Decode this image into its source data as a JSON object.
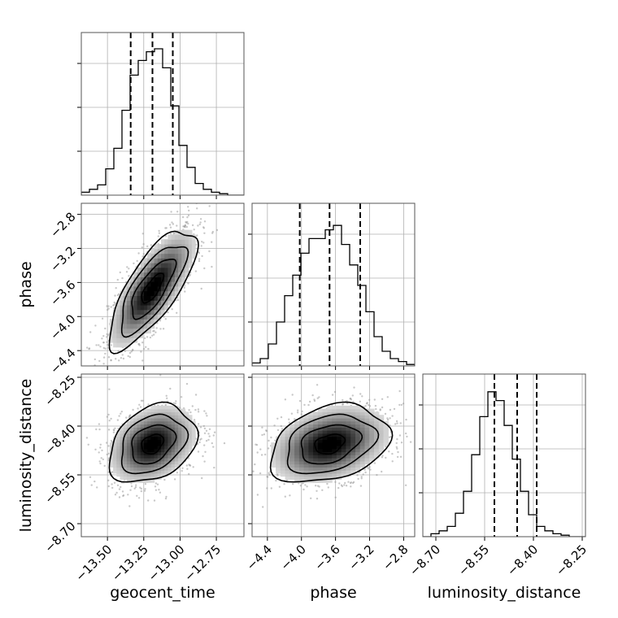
{
  "chart_data": {
    "type": "corner",
    "grid": true,
    "parameters": [
      {
        "name": "geocent_time",
        "label": "geocent_time",
        "range": [
          -13.68,
          -12.56
        ],
        "ticks": [
          -13.5,
          -13.25,
          -13.0,
          -12.75
        ],
        "tick_labels": [
          "−13.50",
          "−13.25",
          "−13.00",
          "−12.75"
        ],
        "quantiles": [
          -13.34,
          -13.19,
          -13.05
        ],
        "mean": -13.19,
        "sd": 0.15
      },
      {
        "name": "phase",
        "label": "phase",
        "range": [
          -4.58,
          -2.67
        ],
        "ticks": [
          -4.4,
          -4.0,
          -3.6,
          -3.2,
          -2.8
        ],
        "tick_labels": [
          "−4.4",
          "−4.0",
          "−3.6",
          "−3.2",
          "−2.8"
        ],
        "quantiles": [
          -4.02,
          -3.67,
          -3.31
        ],
        "mean": -3.67,
        "sd": 0.35
      },
      {
        "name": "luminosity_distance",
        "label": "luminosity_distance",
        "range": [
          -8.74,
          -8.24
        ],
        "ticks": [
          -8.7,
          -8.55,
          -8.4,
          -8.25
        ],
        "tick_labels": [
          "−8.70",
          "−8.55",
          "−8.40",
          "−8.25"
        ],
        "quantiles": [
          -8.52,
          -8.45,
          -8.39
        ],
        "mean": -8.455,
        "sd": 0.06
      }
    ],
    "histograms": [
      {
        "param": "geocent_time",
        "bin_edges_start": -13.68,
        "bin_width": 0.056,
        "counts": [
          0.02,
          0.04,
          0.07,
          0.18,
          0.32,
          0.58,
          0.82,
          0.92,
          0.98,
          1.0,
          0.87,
          0.61,
          0.34,
          0.19,
          0.08,
          0.04,
          0.02,
          0.01,
          0,
          0
        ]
      },
      {
        "param": "phase",
        "bin_edges_start": -4.58,
        "bin_width": 0.0955,
        "counts": [
          0.02,
          0.05,
          0.15,
          0.3,
          0.48,
          0.62,
          0.77,
          0.87,
          0.87,
          0.93,
          0.96,
          0.83,
          0.69,
          0.55,
          0.37,
          0.2,
          0.1,
          0.05,
          0.03,
          0.01
        ]
      },
      {
        "param": "luminosity_distance",
        "bin_edges_start": -8.74,
        "bin_width": 0.025,
        "counts": [
          0.0,
          0.02,
          0.04,
          0.07,
          0.16,
          0.31,
          0.56,
          0.82,
          0.99,
          0.93,
          0.76,
          0.53,
          0.31,
          0.15,
          0.07,
          0.04,
          0.02,
          0.01,
          0,
          0
        ]
      }
    ],
    "correlations": [
      {
        "x": "geocent_time",
        "y": "phase",
        "rho": 0.75
      },
      {
        "x": "geocent_time",
        "y": "luminosity_distance",
        "rho": 0.3
      },
      {
        "x": "phase",
        "y": "luminosity_distance",
        "rho": 0.3
      }
    ],
    "contour_levels_sigma": [
      0.5,
      1.0,
      1.5,
      2.0
    ]
  }
}
